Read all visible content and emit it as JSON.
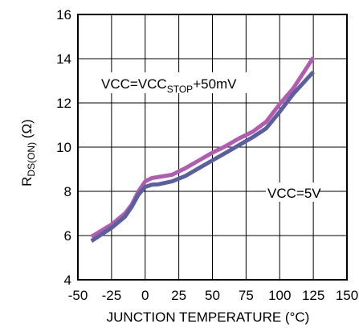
{
  "chart_data": {
    "type": "line",
    "xlabel": "JUNCTION TEMPERATURE (°C)",
    "ylabel_main": "R",
    "ylabel_sub": "DS(ON)",
    "ylabel_unit": " (Ω)",
    "xlim": [
      -50,
      150
    ],
    "ylim": [
      4,
      16
    ],
    "xticks": [
      -50,
      -25,
      0,
      25,
      50,
      75,
      100,
      125,
      150
    ],
    "yticks": [
      4,
      6,
      8,
      10,
      12,
      14,
      16
    ],
    "grid": true,
    "series": [
      {
        "label_main": "VCC=VCC",
        "label_sub": "STOP",
        "label_tail": "+50mV",
        "color": "#b25bb0",
        "x": [
          -40,
          -25,
          -15,
          -10,
          -5,
          0,
          5,
          10,
          20,
          30,
          40,
          50,
          60,
          70,
          80,
          90,
          100,
          110,
          125
        ],
        "y": [
          5.95,
          6.5,
          7.0,
          7.4,
          8.0,
          8.45,
          8.6,
          8.65,
          8.75,
          9.05,
          9.4,
          9.75,
          10.05,
          10.4,
          10.7,
          11.15,
          11.95,
          12.65,
          14.05
        ]
      },
      {
        "label_main": "VCC=5V",
        "color": "#5a5f9e",
        "x": [
          -40,
          -25,
          -15,
          -10,
          -5,
          0,
          5,
          10,
          20,
          30,
          40,
          50,
          60,
          70,
          80,
          90,
          100,
          110,
          125
        ],
        "y": [
          5.75,
          6.35,
          6.85,
          7.3,
          7.85,
          8.2,
          8.3,
          8.32,
          8.45,
          8.7,
          9.05,
          9.4,
          9.75,
          10.1,
          10.45,
          10.85,
          11.6,
          12.4,
          13.4
        ]
      }
    ]
  }
}
